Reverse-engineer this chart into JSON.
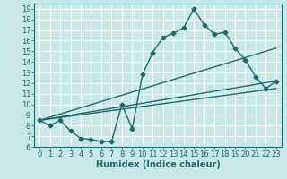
{
  "title": "",
  "xlabel": "Humidex (Indice chaleur)",
  "ylabel": "",
  "background_color": "#c8e8e8",
  "grid_color": "#ffffff",
  "line_color": "#1a6b6b",
  "ylim": [
    6,
    19.5
  ],
  "xlim": [
    -0.5,
    23.5
  ],
  "yticks": [
    6,
    7,
    8,
    9,
    10,
    11,
    12,
    13,
    14,
    15,
    16,
    17,
    18,
    19
  ],
  "xticks": [
    0,
    1,
    2,
    3,
    4,
    5,
    6,
    7,
    8,
    9,
    10,
    11,
    12,
    13,
    14,
    15,
    16,
    17,
    18,
    19,
    20,
    21,
    22,
    23
  ],
  "series": [
    {
      "x": [
        0,
        1,
        2,
        3,
        4,
        5,
        6,
        7,
        8,
        9,
        10,
        11,
        12,
        13,
        14,
        15,
        16,
        17,
        18,
        19,
        20,
        21,
        22,
        23
      ],
      "y": [
        8.5,
        8.0,
        8.5,
        7.5,
        6.8,
        6.7,
        6.5,
        6.5,
        10.0,
        7.7,
        12.8,
        14.9,
        16.3,
        16.7,
        17.2,
        19.0,
        17.5,
        16.6,
        16.8,
        15.3,
        14.2,
        12.6,
        11.5,
        12.2
      ]
    },
    {
      "x": [
        0,
        23
      ],
      "y": [
        8.5,
        12.2
      ]
    },
    {
      "x": [
        0,
        23
      ],
      "y": [
        8.5,
        15.3
      ]
    },
    {
      "x": [
        0,
        23
      ],
      "y": [
        8.5,
        11.5
      ]
    }
  ],
  "marker": "D",
  "marker_size": 2.5,
  "line_width": 1.0,
  "font_size": 6,
  "xlabel_fontsize": 7
}
